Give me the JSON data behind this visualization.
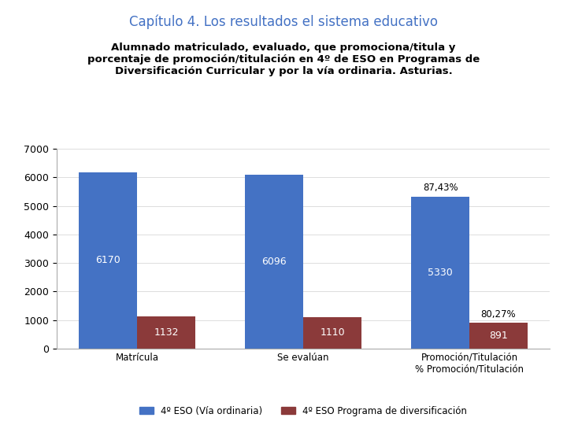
{
  "title": "Capítulo 4. Los resultados el sistema educativo",
  "subtitle_lines": [
    "Alumnado matriculado, evaluado, que promociona/titula y",
    "porcentaje de promoción/titulación en 4º de ESO en Programas de",
    "Diversificación Curricular y por la vía ordinaria. Asturias."
  ],
  "categories": [
    "Matrícula",
    "Se evalúan",
    "Promoción/Titulación\n% Promoción/Titulación"
  ],
  "blue_values": [
    6170,
    6096,
    5330
  ],
  "red_values": [
    1132,
    1110,
    891
  ],
  "blue_annotations": [
    "6170",
    "6096",
    "5330"
  ],
  "red_annotations": [
    "1132",
    "1110",
    "891"
  ],
  "pct_annotations": [
    "87,43%",
    "80,27%"
  ],
  "blue_color": "#4472C4",
  "red_color": "#8B3A3A",
  "ylim": [
    0,
    7000
  ],
  "yticks": [
    0,
    1000,
    2000,
    3000,
    4000,
    5000,
    6000,
    7000
  ],
  "legend_blue": "4º ESO (Vía ordinaria)",
  "legend_red": "4º ESO Programa de diversificación",
  "title_color": "#4472C4",
  "background_color": "#FFFFFF",
  "bar_width": 0.35
}
